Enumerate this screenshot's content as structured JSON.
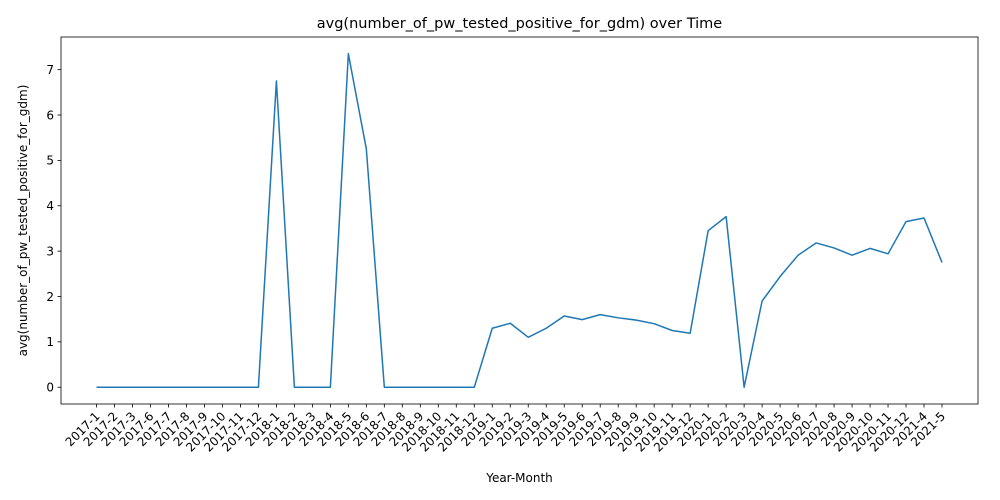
{
  "chart_data": {
    "type": "line",
    "title": "avg(number_of_pw_tested_positive_for_gdm) over Time",
    "xlabel": "Year-Month",
    "ylabel": "avg(number_of_pw_tested_positive_for_gdm)",
    "ylim": [
      -0.37,
      7.72
    ],
    "yticks": [
      0,
      1,
      2,
      3,
      4,
      5,
      6,
      7
    ],
    "grid": false,
    "line_color": "#1f77b4",
    "categories": [
      "2017-1",
      "2017-2",
      "2017-3",
      "2017-6",
      "2017-7",
      "2017-8",
      "2017-9",
      "2017-10",
      "2017-11",
      "2017-12",
      "2018-1",
      "2018-2",
      "2018-3",
      "2018-4",
      "2018-5",
      "2018-6",
      "2018-7",
      "2018-8",
      "2018-9",
      "2018-10",
      "2018-11",
      "2018-12",
      "2019-1",
      "2019-2",
      "2019-3",
      "2019-4",
      "2019-5",
      "2019-6",
      "2019-7",
      "2019-8",
      "2019-9",
      "2019-10",
      "2019-11",
      "2019-12",
      "2020-1",
      "2020-2",
      "2020-3",
      "2020-4",
      "2020-5",
      "2020-6",
      "2020-7",
      "2020-8",
      "2020-9",
      "2020-10",
      "2020-11",
      "2020-12",
      "2021-4",
      "2021-5"
    ],
    "values": [
      0,
      0,
      0,
      0,
      0,
      0,
      0,
      0,
      0,
      0,
      6.75,
      0,
      0,
      0,
      7.35,
      5.25,
      0,
      0,
      0,
      0,
      0,
      0,
      1.3,
      1.41,
      1.1,
      1.3,
      1.57,
      1.49,
      1.6,
      1.53,
      1.48,
      1.4,
      1.25,
      1.19,
      3.45,
      3.76,
      0,
      1.9,
      2.44,
      2.91,
      3.18,
      3.07,
      2.91,
      3.06,
      2.94,
      3.65,
      3.73,
      2.75
    ]
  }
}
